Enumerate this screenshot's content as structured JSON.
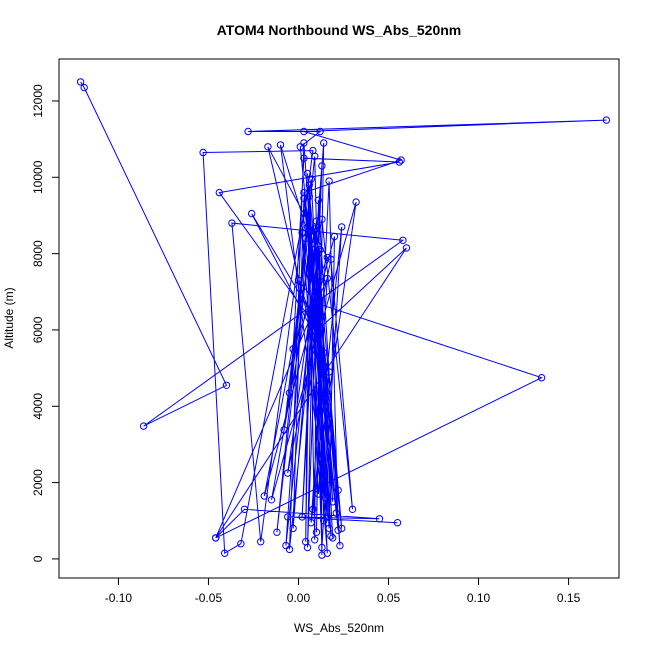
{
  "chart_data": {
    "type": "line",
    "title": "ATOM4 Northbound WS_Abs_520nm",
    "xlabel": "WS_Abs_520nm",
    "ylabel": "Altitude (m)",
    "xlim": [
      -0.133,
      0.178
    ],
    "ylim": [
      -500,
      13100
    ],
    "x_ticks": [
      -0.1,
      -0.05,
      0.0,
      0.05,
      0.1,
      0.15
    ],
    "x_tick_labels": [
      "-0.10",
      "-0.05",
      "0.00",
      "0.05",
      "0.10",
      "0.15"
    ],
    "y_ticks": [
      0,
      2000,
      4000,
      6000,
      8000,
      10000,
      12000
    ],
    "y_tick_labels": [
      "0",
      "2000",
      "4000",
      "6000",
      "8000",
      "10000",
      "12000"
    ],
    "series_color": "#0000ff",
    "series": [
      {
        "points": [
          [
            -0.121,
            12500
          ],
          [
            -0.119,
            12350
          ],
          [
            -0.04,
            4550
          ],
          [
            -0.086,
            3480
          ],
          [
            0.058,
            8350
          ],
          [
            -0.037,
            8800
          ],
          [
            -0.021,
            450
          ],
          [
            0.008,
            10700
          ],
          [
            -0.053,
            10650
          ],
          [
            -0.041,
            150
          ],
          [
            -0.032,
            400
          ],
          [
            0.006,
            9800
          ],
          [
            0.004,
            450
          ],
          [
            0.007,
            8600
          ],
          [
            -0.012,
            700
          ],
          [
            0.009,
            10550
          ],
          [
            0.014,
            1000
          ],
          [
            0.011,
            9400
          ],
          [
            0.023,
            350
          ],
          [
            0.01,
            7950
          ],
          [
            0.013,
            100
          ],
          [
            0.012,
            8100
          ],
          [
            -0.005,
            250
          ],
          [
            0.003,
            10900
          ],
          [
            0.018,
            600
          ],
          [
            0.009,
            8650
          ],
          [
            0.005,
            300
          ],
          [
            0.013,
            10300
          ],
          [
            0.002,
            1100
          ],
          [
            0.01,
            8850
          ],
          [
            -0.019,
            1650
          ],
          [
            0.02,
            8450
          ],
          [
            0.017,
            800
          ],
          [
            0.006,
            9500
          ],
          [
            -0.007,
            350
          ],
          [
            0.011,
            8200
          ],
          [
            0.019,
            1500
          ],
          [
            0.003,
            9450
          ],
          [
            -0.003,
            800
          ],
          [
            0.014,
            10900
          ],
          [
            0.01,
            700
          ],
          [
            0.012,
            7400
          ],
          [
            0.024,
            800
          ],
          [
            0.007,
            7800
          ],
          [
            0.021,
            1200
          ],
          [
            0.002,
            8550
          ],
          [
            0.016,
            150
          ],
          [
            0.008,
            8100
          ],
          [
            -0.01,
            10850
          ],
          [
            0.016,
            1100
          ],
          [
            0.005,
            10100
          ],
          [
            0.022,
            1800
          ],
          [
            0.003,
            9600
          ],
          [
            0.057,
            10450
          ],
          [
            0.003,
            11200
          ],
          [
            0.171,
            11500
          ],
          [
            -0.028,
            11200
          ],
          [
            0.012,
            11200
          ],
          [
            0.001,
            10800
          ],
          [
            0.022,
            750
          ],
          [
            0.017,
            9900
          ],
          [
            0.008,
            1300
          ],
          [
            0.024,
            8700
          ],
          [
            0.013,
            300
          ],
          [
            0.007,
            8250
          ],
          [
            -0.008,
            3380
          ],
          [
            0.004,
            8400
          ],
          [
            0.015,
            1600
          ],
          [
            0.006,
            8550
          ],
          [
            0.009,
            500
          ],
          [
            0.01,
            7900
          ],
          [
            0.019,
            550
          ],
          [
            0.011,
            8000
          ],
          [
            -0.006,
            2250
          ],
          [
            0.018,
            7850
          ],
          [
            0.03,
            1300
          ],
          [
            0.013,
            8900
          ],
          [
            -0.015,
            1550
          ],
          [
            0.032,
            9350
          ],
          [
            0.007,
            950
          ],
          [
            0.016,
            7350
          ],
          [
            -0.046,
            550
          ],
          [
            0.06,
            8150
          ],
          [
            0.012,
            6050
          ],
          [
            -0.026,
            9050
          ],
          [
            0.014,
            5400
          ],
          [
            0.008,
            6200
          ],
          [
            -0.044,
            9600
          ],
          [
            0.056,
            10400
          ],
          [
            0.003,
            10500
          ],
          [
            -0.003,
            5500
          ],
          [
            0.016,
            7900
          ],
          [
            -0.017,
            10800
          ],
          [
            0.013,
            4750
          ],
          [
            0.007,
            9950
          ],
          [
            -0.005,
            4350
          ],
          [
            0.005,
            8700
          ],
          [
            0.011,
            1700
          ],
          [
            0.017,
            4900
          ],
          [
            0.0,
            7300
          ],
          [
            0.01,
            6700
          ],
          [
            0.135,
            4750
          ],
          [
            -0.046,
            550
          ],
          [
            -0.03,
            1300
          ],
          [
            0.045,
            1050
          ],
          [
            -0.006,
            1100
          ],
          [
            0.055,
            950
          ]
        ]
      }
    ]
  }
}
